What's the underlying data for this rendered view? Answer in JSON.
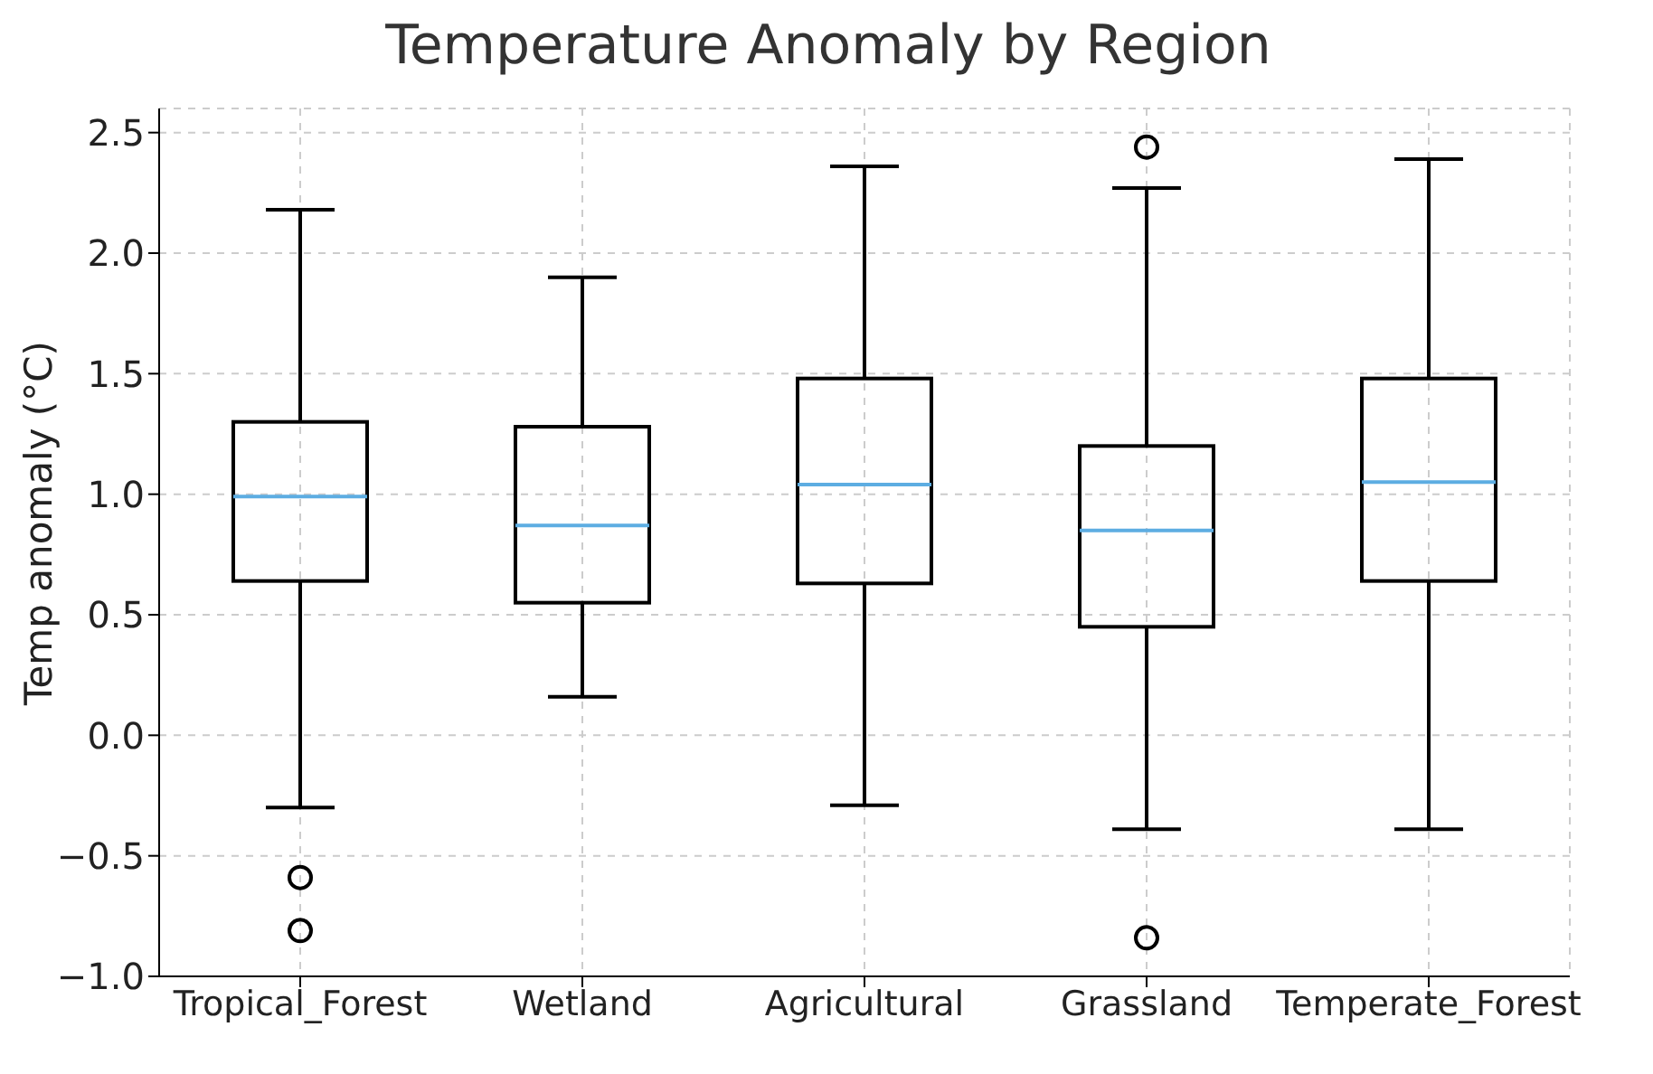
{
  "chart_data": {
    "type": "box",
    "title": "Temperature Anomaly by Region",
    "ylabel": "Temp anomaly (°C)",
    "categories": [
      "Tropical_Forest",
      "Wetland",
      "Agricultural",
      "Grassland",
      "Temperate_Forest"
    ],
    "boxes": [
      {
        "low": -0.3,
        "q1": 0.64,
        "median": 0.99,
        "q3": 1.3,
        "high": 2.18,
        "outliers": [
          -0.59,
          -0.81
        ]
      },
      {
        "low": 0.16,
        "q1": 0.55,
        "median": 0.87,
        "q3": 1.28,
        "high": 1.9
      },
      {
        "low": -0.29,
        "q1": 0.63,
        "median": 1.04,
        "q3": 1.48,
        "high": 2.36
      },
      {
        "low": -0.39,
        "q1": 0.45,
        "median": 0.85,
        "q3": 1.2,
        "high": 2.27,
        "outliers": [
          2.44,
          -0.84
        ]
      },
      {
        "low": -0.39,
        "q1": 0.64,
        "median": 1.05,
        "q3": 1.48,
        "high": 2.39
      }
    ],
    "ylim": [
      -1,
      2.6
    ],
    "yticks": [
      {
        "value": -1,
        "label": "−1.0"
      },
      {
        "value": -0.5,
        "label": "−0.5"
      },
      {
        "value": 0,
        "label": "0.0"
      },
      {
        "value": 0.5,
        "label": "0.5"
      },
      {
        "value": 1,
        "label": "1.0"
      },
      {
        "value": 1.5,
        "label": "1.5"
      },
      {
        "value": 2,
        "label": "2.0"
      },
      {
        "value": 2.5,
        "label": "2.5"
      }
    ],
    "grid": true
  }
}
